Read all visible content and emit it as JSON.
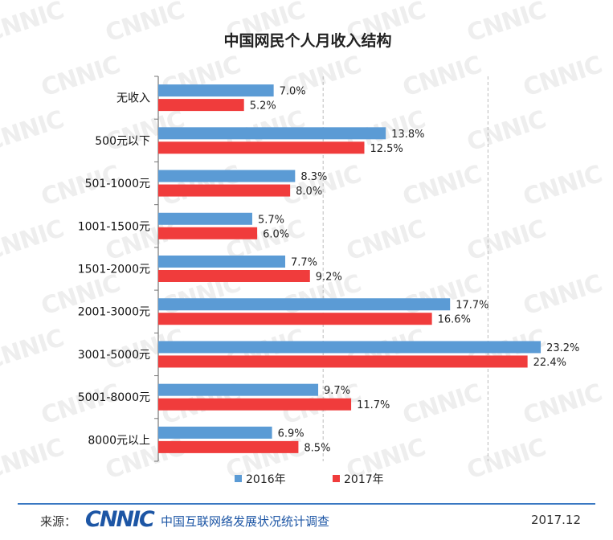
{
  "chart_data": {
    "type": "bar",
    "orientation": "horizontal",
    "title": "中国网民个人月收入结构",
    "categories": [
      "无收入",
      "500元以下",
      "501-1000元",
      "1001-1500元",
      "1501-2000元",
      "2001-3000元",
      "3001-5000元",
      "5001-8000元",
      "8000元以上"
    ],
    "series": [
      {
        "name": "2016年",
        "color": "#5b9bd5",
        "values": [
          7.0,
          13.8,
          8.3,
          5.7,
          7.7,
          17.7,
          23.2,
          9.7,
          6.9
        ],
        "labels": [
          "7.0%",
          "13.8%",
          "8.3%",
          "5.7%",
          "7.7%",
          "17.7%",
          "23.2%",
          "9.7%",
          "6.9%"
        ]
      },
      {
        "name": "2017年",
        "color": "#f03c3c",
        "values": [
          5.2,
          12.5,
          8.0,
          6.0,
          9.2,
          16.6,
          22.4,
          11.7,
          8.5
        ],
        "labels": [
          "5.2%",
          "12.5%",
          "8.0%",
          "6.0%",
          "9.2%",
          "16.6%",
          "22.4%",
          "11.7%",
          "8.5%"
        ]
      }
    ],
    "xlim": [
      0,
      25
    ],
    "gridlines": [
      10,
      20
    ],
    "legend_position": "bottom-center"
  },
  "watermark_text": "CNNIC",
  "footer": {
    "source_label": "来源：",
    "logo_text": "CNNIC",
    "organization": "中国互联网络发展状况统计调查",
    "date": "2017.12"
  }
}
